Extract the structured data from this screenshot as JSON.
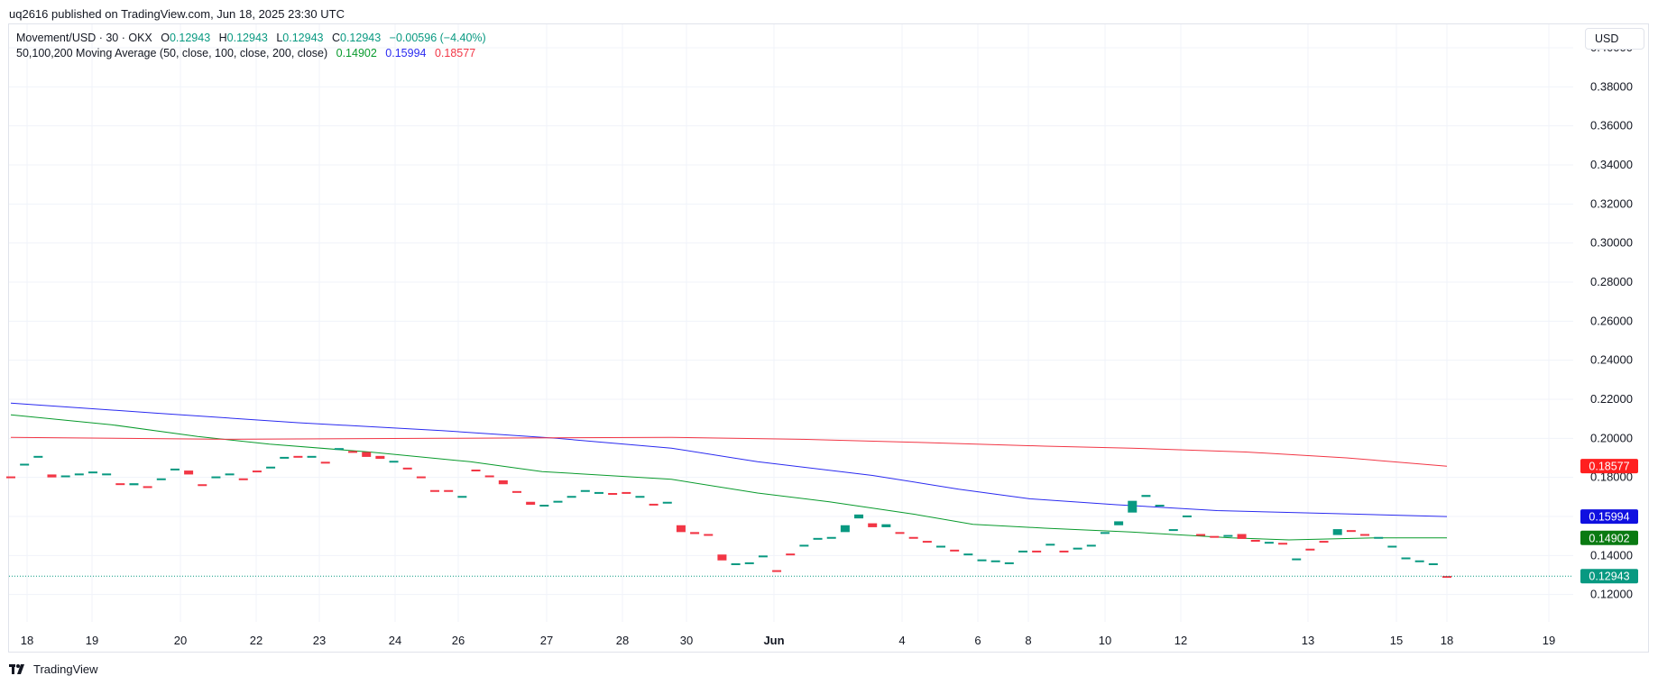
{
  "header": {
    "published": "uq2616 published on TradingView.com, Jun 18, 2025 23:30 UTC"
  },
  "legend": {
    "symbol": "Movement/USD · 30 · OKX",
    "open_label": "O",
    "open": "0.12943",
    "high_label": "H",
    "high": "0.12943",
    "low_label": "L",
    "low": "0.12943",
    "close_label": "C",
    "close": "0.12943",
    "change": "−0.00596 (−4.40%)",
    "ma_title": "50,100,200 Moving Average (50, close, 100, close, 200, close)",
    "ma50": "0.14902",
    "ma100": "0.15994",
    "ma200": "0.18577"
  },
  "currency_button": "USD",
  "footer": {
    "brand": "TradingView"
  },
  "colors": {
    "up": "#089981",
    "down": "#f23645",
    "ma50": "#089a2c",
    "ma100": "#2a2af0",
    "ma200": "#f23645",
    "grid": "#f0f3fa"
  },
  "chart_data": {
    "type": "candlestick",
    "symbol": "Movement/USD",
    "interval": "30",
    "exchange": "OKX",
    "y_axis": {
      "ticks": [
        "0.40000",
        "0.38000",
        "0.36000",
        "0.34000",
        "0.32000",
        "0.30000",
        "0.28000",
        "0.26000",
        "0.24000",
        "0.22000",
        "0.20000",
        "0.18000",
        "0.16000",
        "0.14000",
        "0.12000"
      ],
      "range": [
        0.106,
        0.412
      ]
    },
    "x_axis": {
      "labels": [
        {
          "text": "18",
          "bold": false
        },
        {
          "text": "19",
          "bold": false
        },
        {
          "text": "20",
          "bold": false
        },
        {
          "text": "22",
          "bold": false
        },
        {
          "text": "23",
          "bold": false
        },
        {
          "text": "24",
          "bold": false
        },
        {
          "text": "26",
          "bold": false
        },
        {
          "text": "27",
          "bold": false
        },
        {
          "text": "28",
          "bold": false
        },
        {
          "text": "30",
          "bold": false
        },
        {
          "text": "Jun",
          "bold": true
        },
        {
          "text": "4",
          "bold": false
        },
        {
          "text": "6",
          "bold": false
        },
        {
          "text": "8",
          "bold": false
        },
        {
          "text": "10",
          "bold": false
        },
        {
          "text": "12",
          "bold": false
        },
        {
          "text": "13",
          "bold": false
        },
        {
          "text": "15",
          "bold": false
        },
        {
          "text": "18",
          "bold": false
        },
        {
          "text": "19",
          "bold": false
        }
      ]
    },
    "candles": [
      {
        "o": 0.1805,
        "c": 0.18
      },
      {
        "o": 0.1865,
        "c": 0.187
      },
      {
        "o": 0.1905,
        "c": 0.191
      },
      {
        "o": 0.1815,
        "c": 0.18
      },
      {
        "o": 0.1805,
        "c": 0.181
      },
      {
        "o": 0.1815,
        "c": 0.182
      },
      {
        "o": 0.1825,
        "c": 0.183
      },
      {
        "o": 0.1815,
        "c": 0.182
      },
      {
        "o": 0.177,
        "c": 0.1765
      },
      {
        "o": 0.176,
        "c": 0.177
      },
      {
        "o": 0.1755,
        "c": 0.175
      },
      {
        "o": 0.179,
        "c": 0.1795
      },
      {
        "o": 0.184,
        "c": 0.1845
      },
      {
        "o": 0.1835,
        "c": 0.1815
      },
      {
        "o": 0.1765,
        "c": 0.176
      },
      {
        "o": 0.18,
        "c": 0.1805
      },
      {
        "o": 0.1815,
        "c": 0.182
      },
      {
        "o": 0.1795,
        "c": 0.179
      },
      {
        "o": 0.1835,
        "c": 0.183
      },
      {
        "o": 0.185,
        "c": 0.1855
      },
      {
        "o": 0.19,
        "c": 0.1905
      },
      {
        "o": 0.191,
        "c": 0.1905
      },
      {
        "o": 0.1905,
        "c": 0.191
      },
      {
        "o": 0.188,
        "c": 0.1875
      },
      {
        "o": 0.1945,
        "c": 0.195
      },
      {
        "o": 0.1935,
        "c": 0.193
      },
      {
        "o": 0.193,
        "c": 0.1905
      },
      {
        "o": 0.191,
        "c": 0.1895
      },
      {
        "o": 0.188,
        "c": 0.1885
      },
      {
        "o": 0.185,
        "c": 0.1845
      },
      {
        "o": 0.1805,
        "c": 0.18
      },
      {
        "o": 0.1735,
        "c": 0.173
      },
      {
        "o": 0.1735,
        "c": 0.173
      },
      {
        "o": 0.17,
        "c": 0.1705
      },
      {
        "o": 0.184,
        "c": 0.1835
      },
      {
        "o": 0.181,
        "c": 0.1805
      },
      {
        "o": 0.1785,
        "c": 0.1765
      },
      {
        "o": 0.173,
        "c": 0.1725
      },
      {
        "o": 0.1675,
        "c": 0.166
      },
      {
        "o": 0.1655,
        "c": 0.166
      },
      {
        "o": 0.1675,
        "c": 0.168
      },
      {
        "o": 0.17,
        "c": 0.1705
      },
      {
        "o": 0.173,
        "c": 0.1735
      },
      {
        "o": 0.172,
        "c": 0.1725
      },
      {
        "o": 0.172,
        "c": 0.1715
      },
      {
        "o": 0.1725,
        "c": 0.172
      },
      {
        "o": 0.17,
        "c": 0.1705
      },
      {
        "o": 0.1665,
        "c": 0.166
      },
      {
        "o": 0.167,
        "c": 0.1675
      },
      {
        "o": 0.1555,
        "c": 0.152
      },
      {
        "o": 0.152,
        "c": 0.151
      },
      {
        "o": 0.151,
        "c": 0.1505
      },
      {
        "o": 0.1405,
        "c": 0.1375
      },
      {
        "o": 0.1355,
        "c": 0.136
      },
      {
        "o": 0.136,
        "c": 0.1365
      },
      {
        "o": 0.1395,
        "c": 0.14
      },
      {
        "o": 0.1325,
        "c": 0.132
      },
      {
        "o": 0.141,
        "c": 0.1405
      },
      {
        "o": 0.145,
        "c": 0.1455
      },
      {
        "o": 0.1485,
        "c": 0.149
      },
      {
        "o": 0.149,
        "c": 0.1495
      },
      {
        "o": 0.152,
        "c": 0.1555
      },
      {
        "o": 0.159,
        "c": 0.161
      },
      {
        "o": 0.1565,
        "c": 0.1545
      },
      {
        "o": 0.1545,
        "c": 0.156
      },
      {
        "o": 0.152,
        "c": 0.1515
      },
      {
        "o": 0.1495,
        "c": 0.149
      },
      {
        "o": 0.1475,
        "c": 0.147
      },
      {
        "o": 0.1445,
        "c": 0.145
      },
      {
        "o": 0.143,
        "c": 0.1425
      },
      {
        "o": 0.1405,
        "c": 0.141
      },
      {
        "o": 0.1375,
        "c": 0.138
      },
      {
        "o": 0.137,
        "c": 0.1375
      },
      {
        "o": 0.136,
        "c": 0.1365
      },
      {
        "o": 0.142,
        "c": 0.1425
      },
      {
        "o": 0.1425,
        "c": 0.142
      },
      {
        "o": 0.1455,
        "c": 0.146
      },
      {
        "o": 0.1425,
        "c": 0.142
      },
      {
        "o": 0.1435,
        "c": 0.144
      },
      {
        "o": 0.145,
        "c": 0.1455
      },
      {
        "o": 0.1515,
        "c": 0.152
      },
      {
        "o": 0.1555,
        "c": 0.1575
      },
      {
        "o": 0.162,
        "c": 0.168
      },
      {
        "o": 0.17,
        "c": 0.171
      },
      {
        "o": 0.1655,
        "c": 0.166
      },
      {
        "o": 0.153,
        "c": 0.1535
      },
      {
        "o": 0.16,
        "c": 0.1605
      },
      {
        "o": 0.151,
        "c": 0.1505
      },
      {
        "o": 0.15,
        "c": 0.1495
      },
      {
        "o": 0.15,
        "c": 0.1505
      },
      {
        "o": 0.151,
        "c": 0.1485
      },
      {
        "o": 0.148,
        "c": 0.1475
      },
      {
        "o": 0.1465,
        "c": 0.147
      },
      {
        "o": 0.1465,
        "c": 0.146
      },
      {
        "o": 0.138,
        "c": 0.1385
      },
      {
        "o": 0.1435,
        "c": 0.143
      },
      {
        "o": 0.1475,
        "c": 0.147
      },
      {
        "o": 0.1505,
        "c": 0.1535
      },
      {
        "o": 0.153,
        "c": 0.1525
      },
      {
        "o": 0.151,
        "c": 0.1505
      },
      {
        "o": 0.149,
        "c": 0.1495
      },
      {
        "o": 0.1445,
        "c": 0.145
      },
      {
        "o": 0.1385,
        "c": 0.139
      },
      {
        "o": 0.137,
        "c": 0.1375
      },
      {
        "o": 0.1355,
        "c": 0.136
      },
      {
        "o": 0.1295,
        "c": 0.12943
      }
    ],
    "ma_lines": [
      {
        "name": "MA 50",
        "color": "#089a2c",
        "points": [
          [
            0,
            0.212
          ],
          [
            0.07,
            0.207
          ],
          [
            0.13,
            0.201
          ],
          [
            0.18,
            0.197
          ],
          [
            0.25,
            0.193
          ],
          [
            0.32,
            0.188
          ],
          [
            0.37,
            0.183
          ],
          [
            0.46,
            0.179
          ],
          [
            0.52,
            0.172
          ],
          [
            0.57,
            0.1675
          ],
          [
            0.63,
            0.161
          ],
          [
            0.67,
            0.156
          ],
          [
            0.72,
            0.154
          ],
          [
            0.78,
            0.152
          ],
          [
            0.85,
            0.149
          ],
          [
            0.89,
            0.148
          ],
          [
            0.95,
            0.149
          ],
          [
            1.0,
            0.14902
          ]
        ]
      },
      {
        "name": "MA 100",
        "color": "#2a2af0",
        "points": [
          [
            0,
            0.218
          ],
          [
            0.1,
            0.213
          ],
          [
            0.2,
            0.208
          ],
          [
            0.3,
            0.204
          ],
          [
            0.38,
            0.2
          ],
          [
            0.46,
            0.195
          ],
          [
            0.52,
            0.188
          ],
          [
            0.6,
            0.181
          ],
          [
            0.66,
            0.174
          ],
          [
            0.71,
            0.169
          ],
          [
            0.77,
            0.166
          ],
          [
            0.84,
            0.163
          ],
          [
            0.92,
            0.1615
          ],
          [
            1.0,
            0.15994
          ]
        ]
      },
      {
        "name": "MA 200",
        "color": "#f23645",
        "points": [
          [
            0,
            0.2005
          ],
          [
            0.15,
            0.1995
          ],
          [
            0.3,
            0.2
          ],
          [
            0.46,
            0.2005
          ],
          [
            0.55,
            0.1995
          ],
          [
            0.63,
            0.198
          ],
          [
            0.72,
            0.196
          ],
          [
            0.78,
            0.195
          ],
          [
            0.86,
            0.193
          ],
          [
            0.93,
            0.19
          ],
          [
            1.0,
            0.18577
          ]
        ]
      }
    ],
    "last_price": 0.12943
  }
}
